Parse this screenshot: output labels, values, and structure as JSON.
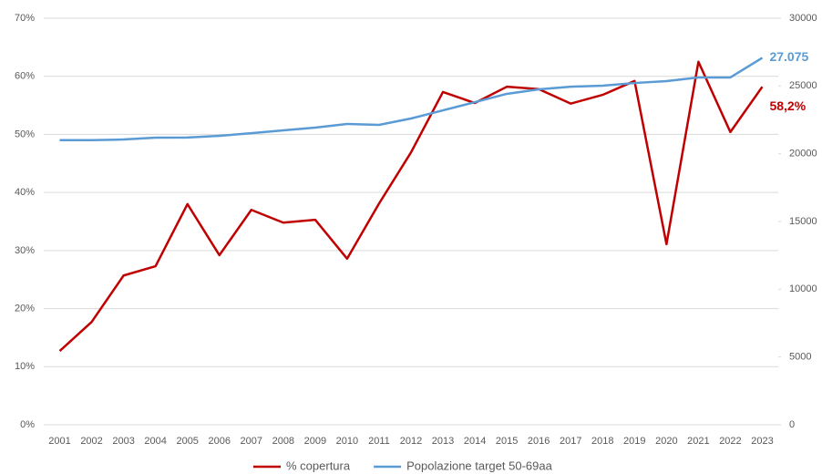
{
  "chart_data": {
    "type": "line",
    "categories": [
      "2001",
      "2002",
      "2003",
      "2004",
      "2005",
      "2006",
      "2007",
      "2008",
      "2009",
      "2010",
      "2011",
      "2012",
      "2013",
      "2014",
      "2015",
      "2016",
      "2017",
      "2018",
      "2019",
      "2020",
      "2021",
      "2022",
      "2023"
    ],
    "series": [
      {
        "name": "% copertura",
        "color": "#c00000",
        "axis": "y",
        "values": [
          12.7,
          17.7,
          25.7,
          27.3,
          38.0,
          29.2,
          37.0,
          34.8,
          35.3,
          28.6,
          38.1,
          46.9,
          57.3,
          55.4,
          58.2,
          57.8,
          55.3,
          56.8,
          59.2,
          31.1,
          62.5,
          50.4,
          58.2
        ],
        "value_labels": [
          null,
          null,
          null,
          null,
          null,
          null,
          null,
          null,
          null,
          null,
          null,
          null,
          null,
          null,
          null,
          null,
          null,
          null,
          null,
          null,
          null,
          null,
          "58,2%"
        ]
      },
      {
        "name": "Popolazione target 50-69aa",
        "color": "#5b9bd5",
        "axis": "y2",
        "values": [
          21000,
          21000,
          21050,
          21190,
          21200,
          21320,
          21520,
          21730,
          21930,
          22200,
          22130,
          22600,
          23200,
          23810,
          24420,
          24750,
          24950,
          25020,
          25220,
          25360,
          25630,
          25630,
          27075
        ],
        "value_labels": [
          null,
          null,
          null,
          null,
          null,
          null,
          null,
          null,
          null,
          null,
          null,
          null,
          null,
          null,
          null,
          null,
          null,
          null,
          null,
          null,
          null,
          null,
          "27.075"
        ]
      }
    ],
    "ylim": [
      0,
      70
    ],
    "yticks": [
      {
        "value": 0,
        "label": "0%"
      },
      {
        "value": 10,
        "label": "10%"
      },
      {
        "value": 20,
        "label": "20%"
      },
      {
        "value": 30,
        "label": "30%"
      },
      {
        "value": 40,
        "label": "40%"
      },
      {
        "value": 50,
        "label": "50%"
      },
      {
        "value": 60,
        "label": "60%"
      },
      {
        "value": 70,
        "label": "70%"
      }
    ],
    "y2lim": [
      0,
      30000
    ],
    "y2ticks": [
      0,
      5000,
      10000,
      15000,
      20000,
      25000,
      30000
    ],
    "grid": true
  }
}
